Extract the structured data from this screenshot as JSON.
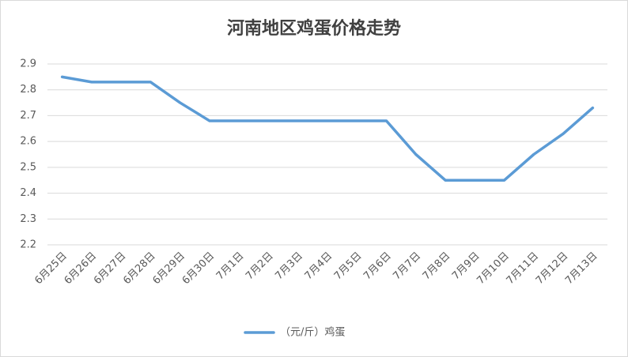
{
  "chart_data": {
    "type": "line",
    "title": "河南地区鸡蛋价格走势",
    "categories": [
      "6月25日",
      "6月26日",
      "6月27日",
      "6月28日",
      "6月29日",
      "6月30日",
      "7月1日",
      "7月2日",
      "7月3日",
      "7月4日",
      "7月5日",
      "7月6日",
      "7月7日",
      "7月8日",
      "7月9日",
      "7月10日",
      "7月11日",
      "7月12日",
      "7月13日"
    ],
    "series": [
      {
        "name": "（元/斤）鸡蛋",
        "color": "#5b9bd5",
        "values": [
          2.85,
          2.83,
          2.83,
          2.83,
          2.75,
          2.68,
          2.68,
          2.68,
          2.68,
          2.68,
          2.68,
          2.68,
          2.55,
          2.45,
          2.45,
          2.45,
          2.55,
          2.63,
          2.73
        ]
      }
    ],
    "ylim": [
      2.2,
      2.9
    ],
    "yticks": [
      2.2,
      2.3,
      2.4,
      2.5,
      2.6,
      2.7,
      2.8,
      2.9
    ],
    "grid": true,
    "legend": "bottom"
  }
}
